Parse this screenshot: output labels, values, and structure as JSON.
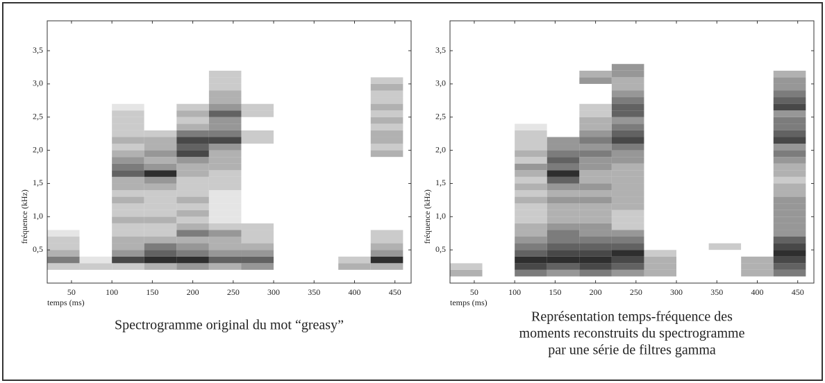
{
  "chart_data": [
    {
      "type": "heatmap",
      "xlabel": "temps (ms)",
      "ylabel": "fréquence (kHz)",
      "caption": [
        "Spectrogramme original du mot “greasy”"
      ],
      "xlim": [
        20,
        470
      ],
      "ylim": [
        0,
        3.95
      ],
      "xticks": [
        50,
        100,
        150,
        200,
        250,
        300,
        350,
        400,
        450
      ],
      "yticks": [
        {
          "value": 0.5,
          "label": "0,5"
        },
        {
          "value": 1.0,
          "label": "1,0"
        },
        {
          "value": 1.5,
          "label": "1,5"
        },
        {
          "value": 2.0,
          "label": "2,0"
        },
        {
          "value": 2.5,
          "label": "2,5"
        },
        {
          "value": 3.0,
          "label": "3,0"
        },
        {
          "value": 3.5,
          "label": "3,5"
        }
      ],
      "x": [
        40,
        80,
        120,
        160,
        200,
        240,
        280,
        320,
        360,
        400,
        440
      ],
      "y": [
        0.1,
        0.2,
        0.3,
        0.4,
        0.5,
        0.6,
        0.7,
        0.8,
        0.9,
        1.0,
        1.1,
        1.2,
        1.3,
        1.4,
        1.5,
        1.6,
        1.7,
        1.8,
        1.9,
        2.0,
        2.1,
        2.2,
        2.3,
        2.4,
        2.5,
        2.6,
        2.7,
        2.8,
        2.9,
        3.0,
        3.1,
        3.2
      ],
      "values": [
        [
          0,
          2,
          5,
          3,
          2,
          2,
          1,
          0,
          0,
          0,
          0,
          0,
          0,
          0,
          0,
          0,
          0,
          0,
          0,
          0,
          0,
          0,
          0,
          0,
          0,
          0,
          0,
          0,
          0,
          0,
          0,
          0
        ],
        [
          0,
          2,
          1,
          0,
          0,
          0,
          0,
          0,
          0,
          0,
          0,
          0,
          0,
          0,
          0,
          0,
          0,
          0,
          0,
          0,
          0,
          0,
          0,
          0,
          0,
          0,
          0,
          0,
          0,
          0,
          0,
          0
        ],
        [
          0,
          2,
          7,
          4,
          3,
          3,
          2,
          2,
          3,
          2,
          2,
          3,
          2,
          3,
          3,
          6,
          5,
          4,
          3,
          2,
          3,
          2,
          2,
          2,
          2,
          1,
          0,
          0,
          0,
          0,
          0,
          0
        ],
        [
          0,
          3,
          8,
          6,
          5,
          3,
          2,
          2,
          3,
          2,
          2,
          2,
          2,
          3,
          4,
          8,
          4,
          3,
          4,
          3,
          3,
          2,
          0,
          0,
          0,
          0,
          0,
          0,
          0,
          0,
          0,
          0
        ],
        [
          0,
          4,
          8,
          5,
          4,
          3,
          5,
          3,
          2,
          3,
          2,
          3,
          2,
          2,
          2,
          3,
          3,
          4,
          7,
          6,
          7,
          5,
          3,
          2,
          3,
          2,
          0,
          0,
          0,
          0,
          0,
          0
        ],
        [
          0,
          3,
          6,
          4,
          3,
          3,
          4,
          2,
          1,
          1,
          1,
          1,
          1,
          2,
          2,
          2,
          3,
          3,
          3,
          4,
          7,
          5,
          4,
          4,
          6,
          4,
          3,
          3,
          2,
          2,
          2,
          0
        ],
        [
          0,
          4,
          6,
          4,
          3,
          2,
          2,
          2,
          0,
          0,
          0,
          0,
          0,
          0,
          0,
          0,
          0,
          0,
          0,
          0,
          2,
          2,
          0,
          0,
          2,
          2,
          0,
          0,
          0,
          0,
          0,
          0
        ],
        [
          0,
          0,
          0,
          0,
          0,
          0,
          0,
          0,
          0,
          0,
          0,
          0,
          0,
          0,
          0,
          0,
          0,
          0,
          0,
          0,
          0,
          0,
          0,
          0,
          0,
          0,
          0,
          0,
          0,
          0,
          0,
          0
        ],
        [
          0,
          0,
          0,
          0,
          0,
          0,
          0,
          0,
          0,
          0,
          0,
          0,
          0,
          0,
          0,
          0,
          0,
          0,
          0,
          0,
          0,
          0,
          0,
          0,
          0,
          0,
          0,
          0,
          0,
          0,
          0,
          0
        ],
        [
          0,
          3,
          2,
          0,
          0,
          0,
          0,
          0,
          0,
          0,
          0,
          0,
          0,
          0,
          0,
          0,
          0,
          0,
          0,
          0,
          0,
          0,
          0,
          0,
          0,
          0,
          0,
          0,
          0,
          0,
          0,
          0
        ],
        [
          0,
          3,
          8,
          4,
          3,
          2,
          2,
          0,
          0,
          0,
          0,
          0,
          0,
          0,
          0,
          0,
          0,
          0,
          3,
          2,
          3,
          3,
          2,
          3,
          2,
          3,
          2,
          2,
          3,
          2,
          0,
          0
        ]
      ]
    },
    {
      "type": "heatmap",
      "xlabel": "temps (ms)",
      "ylabel": "fréquence (kHz)",
      "caption": [
        "Représentation temps-fréquence des",
        "moments reconstruits du spectrogramme",
        "par une série de filtres gamma"
      ],
      "xlim": [
        20,
        470
      ],
      "ylim": [
        0,
        3.95
      ],
      "xticks": [
        50,
        100,
        150,
        200,
        250,
        300,
        350,
        400,
        450
      ],
      "yticks": [
        {
          "value": 0.5,
          "label": "0,5"
        },
        {
          "value": 1.0,
          "label": "1,0"
        },
        {
          "value": 1.5,
          "label": "1,5"
        },
        {
          "value": 2.0,
          "label": "2,0"
        },
        {
          "value": 2.5,
          "label": "2,5"
        },
        {
          "value": 3.0,
          "label": "3,0"
        },
        {
          "value": 3.5,
          "label": "3,5"
        }
      ],
      "x": [
        40,
        80,
        120,
        160,
        200,
        240,
        280,
        320,
        360,
        400,
        440
      ],
      "y": [
        0.1,
        0.2,
        0.3,
        0.4,
        0.5,
        0.6,
        0.7,
        0.8,
        0.9,
        1.0,
        1.1,
        1.2,
        1.3,
        1.4,
        1.5,
        1.6,
        1.7,
        1.8,
        1.9,
        2.0,
        2.1,
        2.2,
        2.3,
        2.4,
        2.5,
        2.6,
        2.7,
        2.8,
        2.9,
        3.0,
        3.1,
        3.2
      ],
      "values": [
        [
          3,
          2,
          0,
          0,
          0,
          0,
          0,
          0,
          0,
          0,
          0,
          0,
          0,
          0,
          0,
          0,
          0,
          0,
          0,
          0,
          0,
          0,
          0,
          0,
          0,
          0,
          0,
          0,
          0,
          0,
          0,
          0
        ],
        [
          0,
          0,
          0,
          0,
          0,
          0,
          0,
          0,
          0,
          0,
          0,
          0,
          0,
          0,
          0,
          0,
          0,
          0,
          0,
          0,
          0,
          0,
          0,
          0,
          0,
          0,
          0,
          0,
          0,
          0,
          0,
          0
        ],
        [
          5,
          7,
          8,
          6,
          5,
          4,
          3,
          3,
          2,
          2,
          2,
          3,
          2,
          3,
          2,
          3,
          4,
          2,
          3,
          2,
          2,
          2,
          1,
          0,
          0,
          0,
          0,
          0,
          0,
          0,
          0,
          0
        ],
        [
          4,
          6,
          8,
          7,
          6,
          5,
          5,
          4,
          3,
          3,
          3,
          4,
          3,
          4,
          6,
          8,
          5,
          6,
          5,
          4,
          4,
          0,
          0,
          0,
          0,
          0,
          0,
          0,
          0,
          0,
          0,
          0
        ],
        [
          5,
          7,
          8,
          7,
          6,
          5,
          4,
          4,
          3,
          3,
          3,
          4,
          3,
          4,
          3,
          3,
          4,
          4,
          5,
          4,
          5,
          4,
          3,
          3,
          2,
          2,
          0,
          0,
          0,
          4,
          3,
          0
        ],
        [
          4,
          6,
          7,
          8,
          6,
          5,
          4,
          2,
          2,
          2,
          3,
          3,
          3,
          3,
          3,
          3,
          3,
          4,
          4,
          5,
          7,
          6,
          5,
          4,
          6,
          6,
          5,
          4,
          3,
          3,
          4,
          4
        ],
        [
          3,
          3,
          3,
          2,
          0,
          0,
          0,
          0,
          0,
          0,
          0,
          0,
          0,
          0,
          0,
          0,
          0,
          0,
          0,
          0,
          0,
          0,
          0,
          0,
          0,
          0,
          0,
          0,
          0,
          0,
          0,
          0
        ],
        [
          0,
          0,
          0,
          0,
          0,
          0,
          0,
          0,
          0,
          0,
          0,
          0,
          0,
          0,
          0,
          0,
          0,
          0,
          0,
          0,
          0,
          0,
          0,
          0,
          0,
          0,
          0,
          0,
          0,
          0,
          0,
          0
        ],
        [
          0,
          0,
          0,
          0,
          2,
          0,
          0,
          0,
          0,
          0,
          0,
          0,
          0,
          0,
          0,
          0,
          0,
          0,
          0,
          0,
          0,
          0,
          0,
          0,
          0,
          0,
          0,
          0,
          0,
          0,
          0,
          0
        ],
        [
          3,
          3,
          3,
          0,
          0,
          0,
          0,
          0,
          0,
          0,
          0,
          0,
          0,
          0,
          0,
          0,
          0,
          0,
          0,
          0,
          0,
          0,
          0,
          0,
          0,
          0,
          0,
          0,
          0,
          0,
          0,
          0
        ],
        [
          5,
          6,
          7,
          8,
          7,
          6,
          4,
          4,
          4,
          4,
          4,
          4,
          3,
          3,
          2,
          3,
          3,
          4,
          5,
          4,
          7,
          6,
          5,
          5,
          4,
          7,
          6,
          5,
          4,
          4,
          3,
          0
        ]
      ]
    }
  ]
}
